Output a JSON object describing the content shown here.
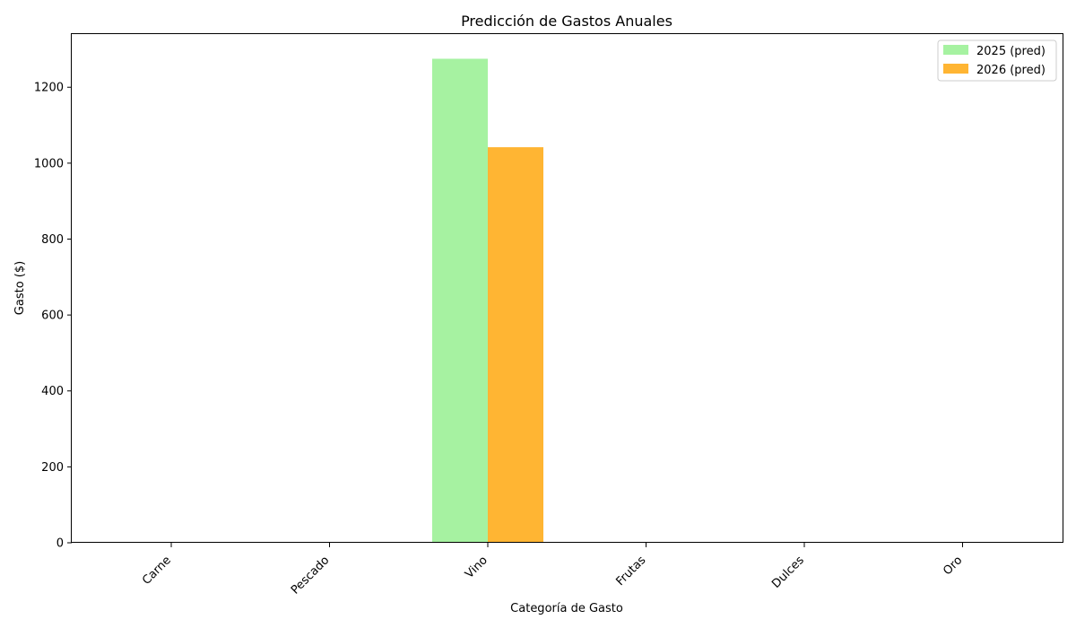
{
  "chart_data": {
    "type": "bar",
    "title": "Predicción de Gastos Anuales",
    "xlabel": "Categoría de Gasto",
    "ylabel": "Gasto ($)",
    "categories": [
      "Carne",
      "Pescado",
      "Vino",
      "Frutas",
      "Dulces",
      "Oro"
    ],
    "series": [
      {
        "name": "2025 (pred)",
        "color": "#a6f2a1",
        "values": [
          0,
          0,
          1275,
          0,
          0,
          0
        ]
      },
      {
        "name": "2026 (pred)",
        "color": "#ffb533",
        "values": [
          0,
          0,
          1042,
          0,
          0,
          0
        ]
      }
    ],
    "ylim": [
      0,
      1340
    ],
    "yticks": [
      0,
      200,
      400,
      600,
      800,
      1000,
      1200
    ],
    "grid": false,
    "legend_position": "top-right"
  }
}
